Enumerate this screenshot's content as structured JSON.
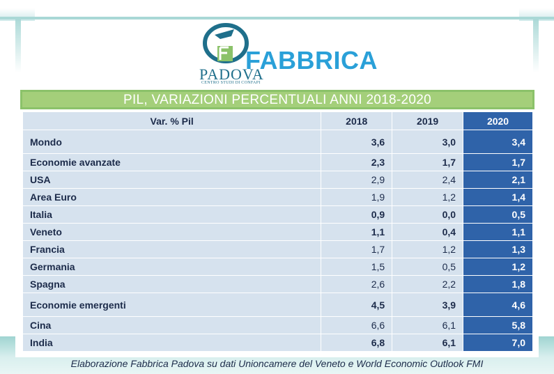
{
  "logo": {
    "brand": "FABBRICA",
    "city": "PADOVA",
    "subtitle": "CENTRO STUDI DI CONFAPI"
  },
  "table": {
    "title": "PIL, VARIAZIONI PERCENTUALI ANNI 2018-2020",
    "columns": [
      "Var. % Pil",
      "2018",
      "2019",
      "2020"
    ],
    "rows": [
      {
        "label": "Mondo",
        "v2018": "3,6",
        "v2019": "3,0",
        "v2020": "3,4"
      },
      {
        "label": "Economie avanzate",
        "v2018": "2,3",
        "v2019": "1,7",
        "v2020": "1,7"
      },
      {
        "label": "USA",
        "v2018": "2,9",
        "v2019": "2,4",
        "v2020": "2,1"
      },
      {
        "label": "Area Euro",
        "v2018": "1,9",
        "v2019": "1,2",
        "v2020": "1,4"
      },
      {
        "label": "Italia",
        "v2018": "0,9",
        "v2019": "0,0",
        "v2020": "0,5"
      },
      {
        "label": "Veneto",
        "v2018": "1,1",
        "v2019": "0,4",
        "v2020": "1,1"
      },
      {
        "label": "Francia",
        "v2018": "1,7",
        "v2019": "1,2",
        "v2020": "1,3"
      },
      {
        "label": "Germania",
        "v2018": "1,5",
        "v2019": "0,5",
        "v2020": "1,2"
      },
      {
        "label": "Spagna",
        "v2018": "2,6",
        "v2019": "2,2",
        "v2020": "1,8"
      },
      {
        "label": "Economie emergenti",
        "v2018": "4,5",
        "v2019": "3,9",
        "v2020": "4,6"
      },
      {
        "label": "Cina",
        "v2018": "6,6",
        "v2019": "6,1",
        "v2020": "5,8"
      },
      {
        "label": "India",
        "v2018": "6,8",
        "v2019": "6,1",
        "v2020": "7,0"
      }
    ]
  },
  "footer": "Elaborazione Fabbrica Padova su dati Unioncamere del Veneto e World Economic Outlook FMI",
  "colors": {
    "title_bar": "#a4cf7a",
    "cell": "#d6e2ee",
    "highlight_2020": "#2f63a9",
    "text": "#1c2b4a",
    "frame": "#a9d8d6",
    "brand": "#2aa0d8"
  }
}
